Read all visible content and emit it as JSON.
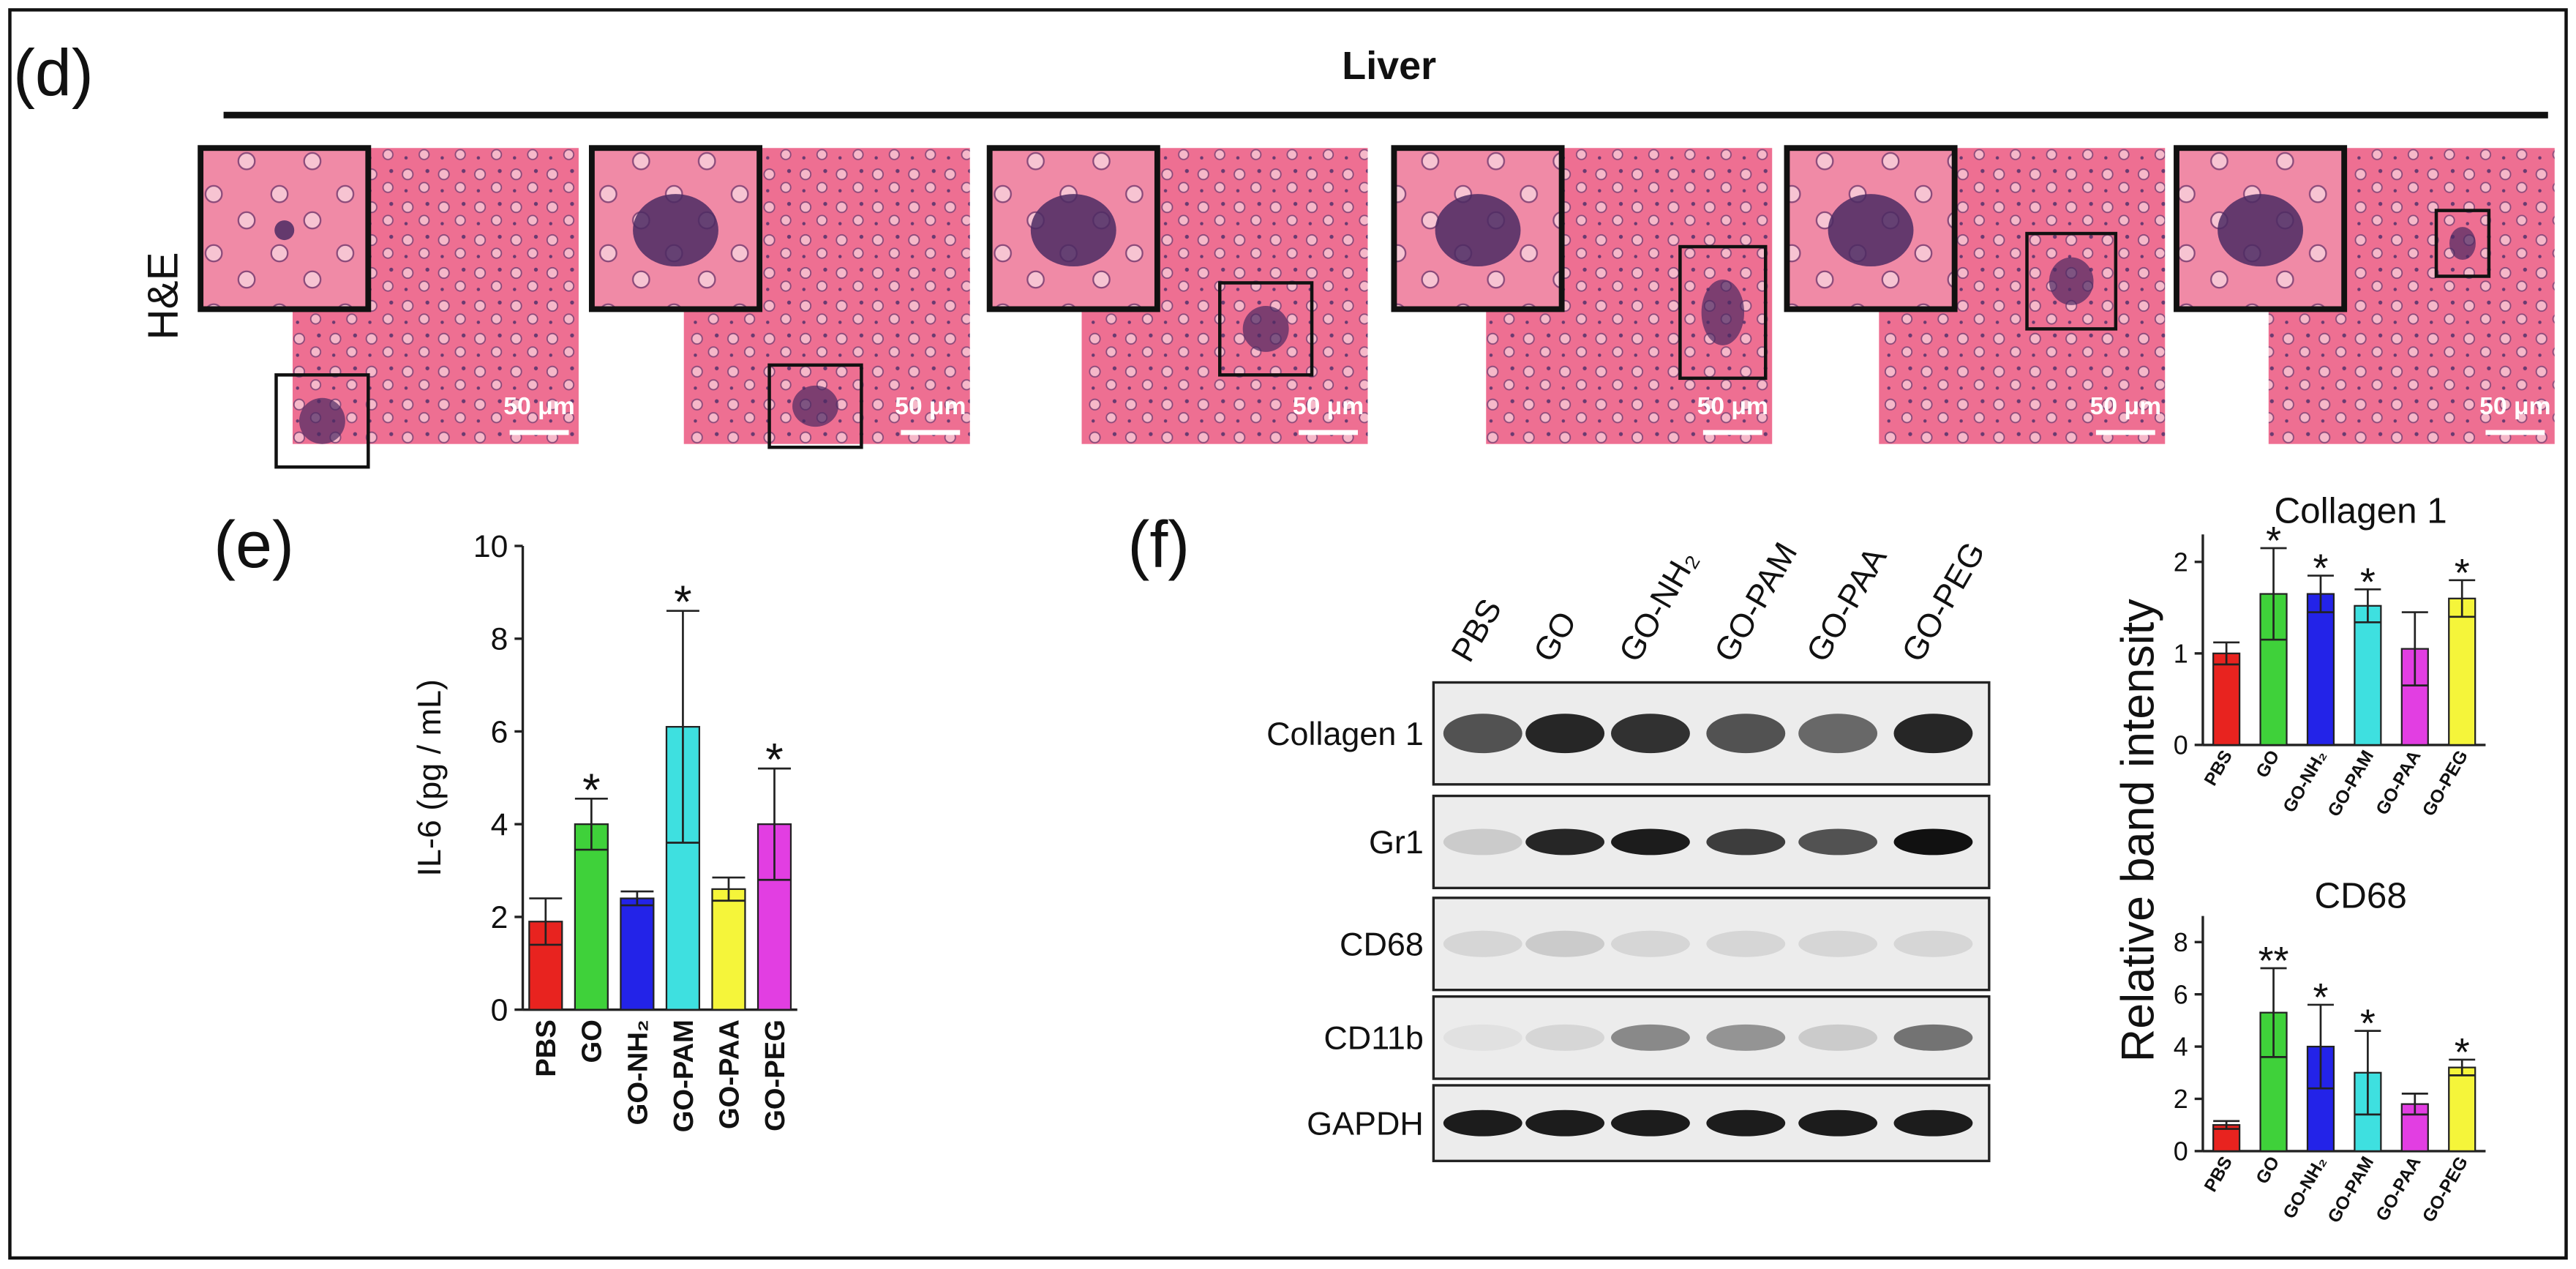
{
  "labels": {
    "panel_d": "(d)",
    "title_d": "Liver",
    "stain": "H&E",
    "scale_bars": [
      "50 μm",
      "50 μm",
      "50 μm",
      "50 μm",
      "50 μm",
      "50 μm"
    ],
    "panel_e": "(e)",
    "panel_f": "(f)",
    "shared_ylabel": "Relative band intensity"
  },
  "blot": {
    "lanes": [
      "PBS",
      "GO",
      "GO-NH₂",
      "GO-PAM",
      "GO-PAA",
      "GO-PEG"
    ],
    "rows": [
      "Collagen 1",
      "Gr1",
      "CD68",
      "CD11b",
      "GAPDH"
    ]
  },
  "chart_data": [
    {
      "type": "bar",
      "ylabel": "IL-6 (pg / mL)",
      "categories": [
        "PBS",
        "GO",
        "GO-NH₂",
        "GO-PAM",
        "GO-PAA",
        "GO-PEG"
      ],
      "values": [
        1.9,
        4.0,
        2.4,
        6.1,
        2.6,
        4.0
      ],
      "errors": [
        0.5,
        0.55,
        0.15,
        2.5,
        0.25,
        1.2
      ],
      "significance": [
        null,
        "*",
        null,
        "*",
        null,
        "*"
      ],
      "colors": [
        "#e8231f",
        "#3fd13a",
        "#2323e8",
        "#3ee0e0",
        "#f5f53a",
        "#e23ee2"
      ],
      "ylim": [
        0,
        10
      ],
      "yticks": [
        0,
        2,
        4,
        6,
        8,
        10
      ]
    },
    {
      "type": "bar",
      "title": "Collagen 1",
      "categories": [
        "PBS",
        "GO",
        "GO-NH₂",
        "GO-PAM",
        "GO-PAA",
        "GO-PEG"
      ],
      "values": [
        1.0,
        1.65,
        1.65,
        1.52,
        1.05,
        1.6
      ],
      "errors": [
        0.12,
        0.5,
        0.2,
        0.18,
        0.4,
        0.2
      ],
      "significance": [
        null,
        "*",
        "*",
        "*",
        null,
        "*"
      ],
      "colors": [
        "#e8231f",
        "#3fd13a",
        "#2323e8",
        "#3ee0e0",
        "#e23ee2",
        "#f5f53a"
      ],
      "ylim": [
        0,
        2.3
      ],
      "yticks": [
        0,
        1,
        2
      ]
    },
    {
      "type": "bar",
      "title": "CD68",
      "categories": [
        "PBS",
        "GO",
        "GO-NH₂",
        "GO-PAM",
        "GO-PAA",
        "GO-PEG"
      ],
      "values": [
        1.0,
        5.3,
        4.0,
        3.0,
        1.8,
        3.2
      ],
      "errors": [
        0.15,
        1.7,
        1.6,
        1.6,
        0.4,
        0.3
      ],
      "significance": [
        null,
        "**",
        "*",
        "*",
        null,
        "*"
      ],
      "colors": [
        "#e8231f",
        "#3fd13a",
        "#2323e8",
        "#3ee0e0",
        "#e23ee2",
        "#f5f53a"
      ],
      "ylim": [
        0,
        9
      ],
      "yticks": [
        0,
        2,
        4,
        6,
        8
      ]
    }
  ]
}
